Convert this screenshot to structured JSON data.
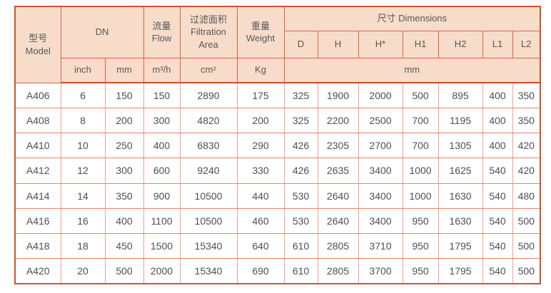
{
  "colors": {
    "header_bg": "#f6dcc9",
    "border_outer": "#d5522e",
    "header_grid": "#dd6442",
    "header_bottom_rule": "#c94d28",
    "data_grid_vertical": "#f2a18c",
    "data_grid_horizontal": "#ec8066",
    "text": "#58585a"
  },
  "header": {
    "model_zh": "型号",
    "model_en": "Model",
    "dn": "DN",
    "flow_zh": "流量",
    "flow_en": "Flow",
    "filtration_zh": "过滤面积",
    "filtration_en": "Filtration Area",
    "weight_zh": "重量",
    "weight_en": "Weight",
    "dimensions": "尺寸 Dimensions",
    "dim_cols": [
      "D",
      "H",
      "H*",
      "H1",
      "H2",
      "L1",
      "L2"
    ],
    "unit_inch": "inch",
    "unit_mm": "mm",
    "unit_flow": "m³/h",
    "unit_area": "cm²",
    "unit_weight": "Kg",
    "unit_dim": "mm"
  },
  "rows": [
    {
      "model": "A406",
      "values": [
        "6",
        "150",
        "150",
        "2890",
        "175",
        "325",
        "1900",
        "2000",
        "500",
        "895",
        "400",
        "350"
      ]
    },
    {
      "model": "A408",
      "values": [
        "8",
        "200",
        "300",
        "4820",
        "200",
        "325",
        "2200",
        "2500",
        "700",
        "1195",
        "400",
        "350"
      ]
    },
    {
      "model": "A410",
      "values": [
        "10",
        "250",
        "400",
        "6830",
        "290",
        "426",
        "2305",
        "2700",
        "700",
        "1305",
        "400",
        "420"
      ]
    },
    {
      "model": "A412",
      "values": [
        "12",
        "300",
        "600",
        "9240",
        "330",
        "426",
        "2635",
        "3400",
        "1000",
        "1625",
        "540",
        "420"
      ]
    },
    {
      "model": "A414",
      "values": [
        "14",
        "350",
        "900",
        "10500",
        "440",
        "530",
        "2640",
        "3400",
        "1000",
        "1630",
        "540",
        "480"
      ]
    },
    {
      "model": "A416",
      "values": [
        "16",
        "400",
        "1100",
        "10500",
        "460",
        "530",
        "2640",
        "3400",
        "950",
        "1630",
        "540",
        "500"
      ]
    },
    {
      "model": "A418",
      "values": [
        "18",
        "450",
        "1500",
        "15340",
        "640",
        "610",
        "2805",
        "3710",
        "950",
        "1795",
        "540",
        "500"
      ]
    },
    {
      "model": "A420",
      "values": [
        "20",
        "500",
        "2000",
        "15340",
        "690",
        "610",
        "2805",
        "3700",
        "950",
        "1795",
        "540",
        "500"
      ]
    }
  ]
}
